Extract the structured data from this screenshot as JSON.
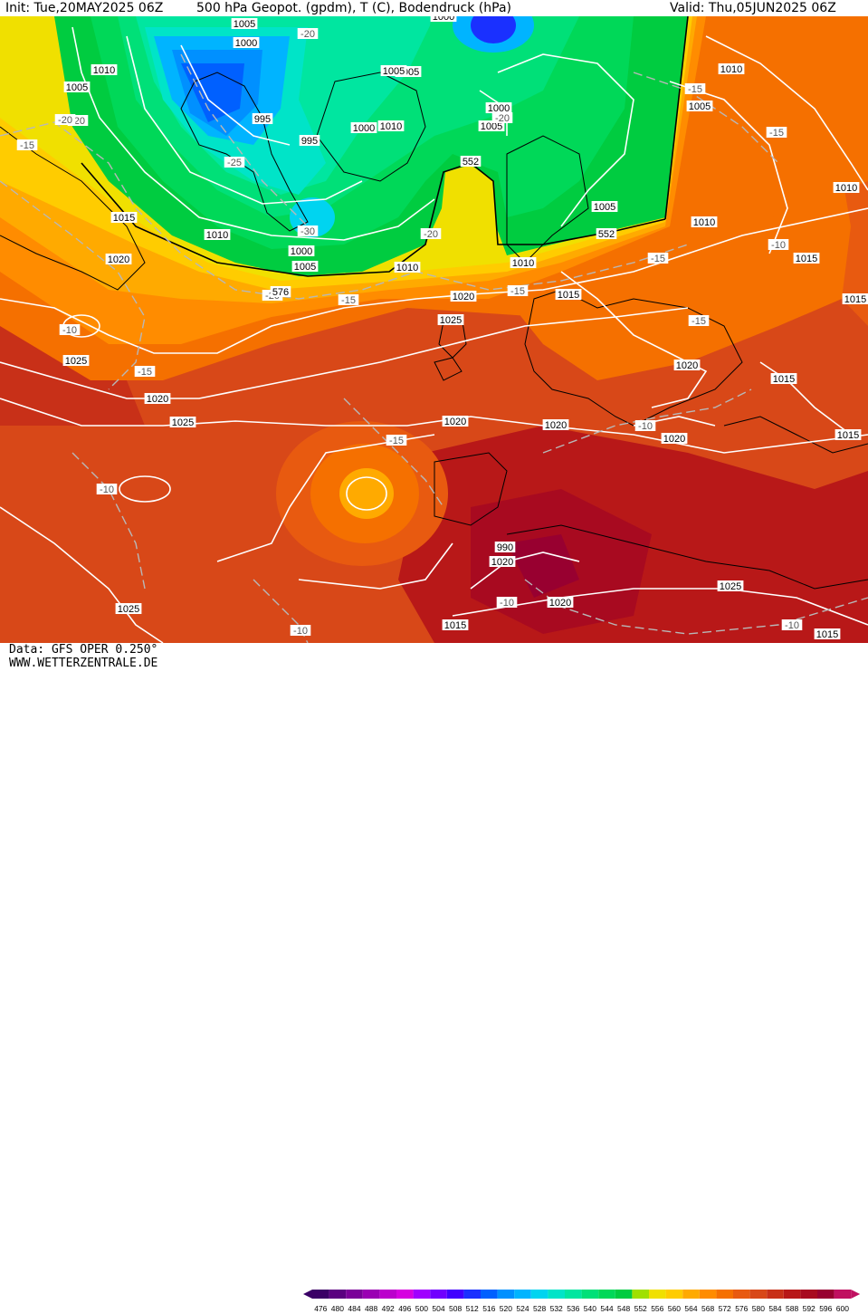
{
  "header": {
    "init": "Init: Tue,20MAY2025 06Z",
    "title": "500 hPa Geopot. (gpdm), T (C), Bodendruck (hPa)",
    "valid": "Valid: Thu,05JUN2025 06Z"
  },
  "footer": {
    "data_source": "Data: GFS OPER 0.250°",
    "website": "WWW.WETTERZENTRALE.DE"
  },
  "legend": {
    "unit": "gpdm",
    "ticks": [
      "476",
      "480",
      "484",
      "488",
      "492",
      "496",
      "500",
      "504",
      "508",
      "512",
      "516",
      "520",
      "524",
      "528",
      "532",
      "536",
      "540",
      "544",
      "548",
      "552",
      "556",
      "560",
      "564",
      "568",
      "572",
      "576",
      "580",
      "584",
      "588",
      "592",
      "596",
      "600"
    ],
    "colors": [
      "#3a0066",
      "#5a0080",
      "#7a0099",
      "#9a00b3",
      "#bb00cc",
      "#d600e0",
      "#a000ff",
      "#7000ff",
      "#4000ff",
      "#1a30ff",
      "#0060ff",
      "#0090ff",
      "#00b4ff",
      "#00d4f0",
      "#00e4c8",
      "#00e6a0",
      "#00e078",
      "#00d858",
      "#00cc40",
      "#a0e000",
      "#f0e000",
      "#ffcc00",
      "#ffaa00",
      "#ff8c00",
      "#f57000",
      "#e85a10",
      "#d84818",
      "#c83018",
      "#b81818",
      "#a80a20",
      "#980030",
      "#c01060"
    ]
  },
  "isobar_labels": [
    "1005",
    "1000",
    "1010",
    "1005",
    "995",
    "995",
    "1000",
    "1005",
    "1000",
    "1005",
    "1010",
    "1000",
    "1005",
    "1010",
    "1015",
    "1010",
    "1005",
    "1005",
    "1010",
    "1010",
    "1015",
    "1015",
    "1020",
    "1025",
    "1020",
    "1025",
    "1015",
    "1020",
    "1020",
    "1020",
    "1025",
    "1020",
    "1025",
    "1020",
    "1015",
    "1015",
    "1020",
    "1025",
    "1020",
    "1015",
    "1015",
    "1010",
    "1010",
    "1005",
    "1000",
    "990",
    "1020"
  ],
  "isotherm_labels": [
    "-20",
    "-20",
    "-20",
    "-15",
    "-25",
    "-30",
    "-20",
    "-15",
    "-20",
    "-15",
    "-20",
    "-15",
    "-15",
    "-10",
    "-15",
    "-15",
    "-10",
    "-15",
    "-10",
    "-10",
    "-10",
    "-10",
    "-10",
    "-15"
  ],
  "geopotential_labels": [
    "552",
    "552",
    "576"
  ]
}
